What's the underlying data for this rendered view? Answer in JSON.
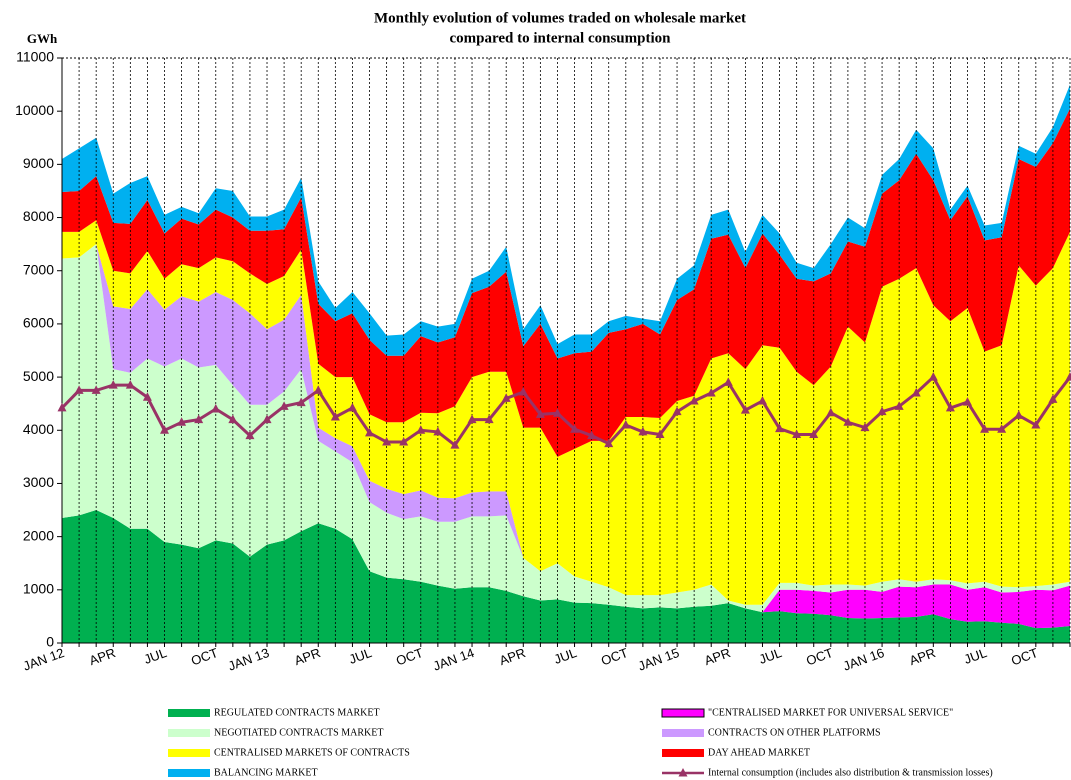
{
  "chart_data": {
    "type": "area",
    "stacked": true,
    "title": "Monthly evolution of volumes traded on wholesale market",
    "subtitle": "compared to internal consumption",
    "y_label": "GWh",
    "ylim": [
      0,
      11000
    ],
    "yticks": [
      0,
      1000,
      2000,
      3000,
      4000,
      5000,
      6000,
      7000,
      8000,
      9000,
      10000,
      11000
    ],
    "grid": "x",
    "categories": [
      "JAN 12",
      null,
      null,
      "APR",
      null,
      null,
      "JUL",
      null,
      null,
      "OCT",
      null,
      null,
      "JAN 13",
      null,
      null,
      "APR",
      null,
      null,
      "JUL",
      null,
      null,
      "OCT",
      null,
      null,
      "JAN 14",
      null,
      null,
      "APR",
      null,
      null,
      "JUL",
      null,
      null,
      "OCT",
      null,
      null,
      "JAN 15",
      null,
      null,
      "APR",
      null,
      null,
      "JUL",
      null,
      null,
      "OCT",
      null,
      null,
      "JAN 16",
      null,
      null,
      "APR",
      null,
      null,
      "JUL",
      null,
      null,
      "OCT",
      null,
      null
    ],
    "series": [
      {
        "name": "REGULATED CONTRACTS MARKET",
        "color": "#00b050",
        "values": [
          2350,
          2400,
          2500,
          2350,
          2150,
          2150,
          1900,
          1850,
          1780,
          1930,
          1870,
          1620,
          1850,
          1930,
          2100,
          2250,
          2150,
          1950,
          1350,
          1230,
          1200,
          1150,
          1080,
          1020,
          1050,
          1050,
          980,
          880,
          800,
          820,
          760,
          750,
          720,
          680,
          650,
          670,
          650,
          680,
          700,
          750,
          650,
          580,
          600,
          560,
          550,
          520,
          470,
          460,
          470,
          480,
          490,
          540,
          450,
          400,
          410,
          380,
          360,
          280,
          290,
          320
        ]
      },
      {
        "name": "\"CENTRALISED MARKET FOR UNIVERSAL SERVICE\"",
        "color": "#ff00ff",
        "values": [
          0,
          0,
          0,
          0,
          0,
          0,
          0,
          0,
          0,
          0,
          0,
          0,
          0,
          0,
          0,
          0,
          0,
          0,
          0,
          0,
          0,
          0,
          0,
          0,
          0,
          0,
          0,
          0,
          0,
          0,
          0,
          0,
          0,
          0,
          0,
          0,
          0,
          0,
          0,
          0,
          0,
          0,
          400,
          440,
          430,
          430,
          530,
          540,
          490,
          580,
          560,
          560,
          650,
          600,
          640,
          570,
          600,
          720,
          700,
          760
        ]
      },
      {
        "name": "NEGOTIATED CONTRACTS MARKET",
        "color": "#ccffcc",
        "values": [
          4880,
          4850,
          5000,
          2800,
          2930,
          3200,
          3300,
          3500,
          3400,
          3300,
          2980,
          2860,
          2630,
          2800,
          3050,
          1550,
          1450,
          1450,
          1300,
          1220,
          1130,
          1230,
          1200,
          1260,
          1330,
          1330,
          1420,
          720,
          550,
          680,
          490,
          400,
          330,
          220,
          250,
          230,
          300,
          320,
          400,
          50,
          70,
          140,
          130,
          130,
          100,
          150,
          100,
          80,
          190,
          140,
          100,
          100,
          80,
          120,
          100,
          110,
          90,
          70,
          110,
          70
        ]
      },
      {
        "name": "CONTRACTS ON OTHER PLATFORMS",
        "color": "#cc99ff",
        "values": [
          0,
          0,
          0,
          1180,
          1200,
          1300,
          1070,
          1170,
          1240,
          1370,
          1600,
          1720,
          1420,
          1350,
          1400,
          250,
          250,
          300,
          400,
          450,
          470,
          490,
          450,
          440,
          450,
          470,
          450,
          0,
          0,
          0,
          0,
          0,
          0,
          0,
          0,
          0,
          0,
          0,
          0,
          0,
          0,
          0,
          0,
          0,
          0,
          0,
          0,
          0,
          0,
          0,
          0,
          0,
          0,
          0,
          0,
          0,
          0,
          0,
          0,
          0
        ]
      },
      {
        "name": "CENTRALISED MARKETS OF CONTRACTS",
        "color": "#ffff00",
        "values": [
          500,
          480,
          450,
          670,
          670,
          720,
          580,
          600,
          630,
          650,
          730,
          750,
          850,
          820,
          850,
          1200,
          1150,
          1300,
          1250,
          1250,
          1350,
          1460,
          1590,
          1730,
          2170,
          2250,
          2250,
          2450,
          2700,
          2000,
          2400,
          2650,
          2750,
          3350,
          3350,
          3330,
          3600,
          3650,
          4250,
          4650,
          4430,
          4880,
          4420,
          3970,
          3770,
          4100,
          4850,
          4570,
          5550,
          5650,
          5900,
          5150,
          4870,
          5180,
          4330,
          4540,
          6050,
          5650,
          5950,
          6580
        ]
      },
      {
        "name": "DAY AHEAD MARKET",
        "color": "#ff0000",
        "values": [
          750,
          770,
          830,
          900,
          930,
          960,
          850,
          860,
          820,
          900,
          820,
          800,
          1000,
          880,
          980,
          1130,
          1050,
          1200,
          1400,
          1250,
          1250,
          1440,
          1330,
          1300,
          1580,
          1600,
          1880,
          1530,
          1950,
          1850,
          1800,
          1680,
          2030,
          1650,
          1750,
          1570,
          1900,
          2000,
          2250,
          2230,
          1900,
          2100,
          1750,
          1750,
          1950,
          1750,
          1600,
          1800,
          1750,
          1850,
          2150,
          2350,
          1900,
          2100,
          2090,
          2030,
          2000,
          2230,
          2350,
          2320
        ]
      },
      {
        "name": "BALANCING MARKET",
        "color": "#00b0f0",
        "values": [
          620,
          800,
          720,
          550,
          770,
          450,
          350,
          220,
          210,
          400,
          500,
          270,
          270,
          370,
          370,
          420,
          250,
          400,
          500,
          380,
          400,
          280,
          300,
          250,
          270,
          300,
          470,
          320,
          350,
          270,
          350,
          320,
          220,
          250,
          100,
          250,
          400,
          450,
          450,
          470,
          300,
          350,
          400,
          300,
          250,
          550,
          450,
          350,
          350,
          400,
          450,
          600,
          200,
          200,
          280,
          270,
          250,
          250,
          300,
          450
        ]
      },
      {
        "name": "Internal consumption (includes also distribution & transmission losses)",
        "type": "line",
        "color": "#993366",
        "values": [
          4420,
          4750,
          4750,
          4850,
          4850,
          4620,
          4000,
          4150,
          4200,
          4400,
          4200,
          3900,
          4200,
          4450,
          4520,
          4750,
          4250,
          4420,
          3950,
          3780,
          3780,
          4000,
          3970,
          3720,
          4200,
          4200,
          4600,
          4720,
          4300,
          4320,
          4020,
          3900,
          3750,
          4100,
          3970,
          3920,
          4350,
          4550,
          4700,
          4900,
          4380,
          4550,
          4030,
          3920,
          3920,
          4330,
          4150,
          4050,
          4350,
          4450,
          4700,
          5000,
          4420,
          4530,
          4020,
          4020,
          4280,
          4100,
          4580,
          5000
        ]
      }
    ]
  }
}
